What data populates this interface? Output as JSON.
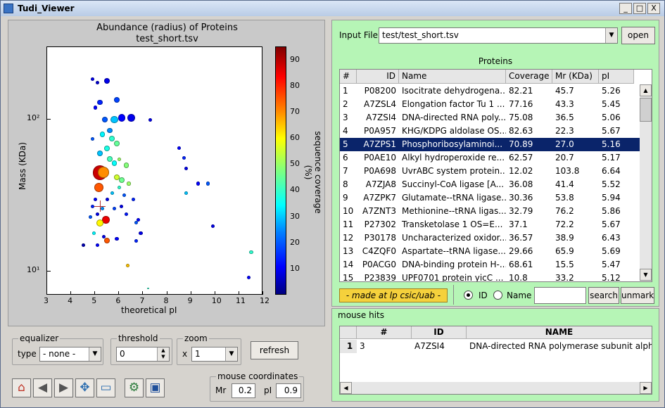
{
  "window": {
    "title": "Tudi_Viewer",
    "min": "_",
    "max": "□",
    "close": "X"
  },
  "chart_data": {
    "type": "scatter",
    "title": "Abundance (radius) of Proteins",
    "subtitle": "test_short.tsv",
    "xlabel": "theoretical pI",
    "ylabel": "Mass (KDa)",
    "xlim": [
      3,
      12
    ],
    "ylim": [
      7,
      300
    ],
    "yscale": "log",
    "xticks": [
      "3",
      "4",
      "5",
      "6",
      "7",
      "8",
      "9",
      "10",
      "11",
      "12"
    ],
    "yticks": [
      {
        "label": "10¹",
        "v": 10
      },
      {
        "label": "10²",
        "v": 100
      }
    ],
    "colorbar": {
      "label": "sequence coverage (%)",
      "range": [
        0,
        95
      ],
      "ticks": [
        "10",
        "20",
        "30",
        "40",
        "50",
        "60",
        "70",
        "80",
        "90"
      ]
    },
    "points": [
      {
        "x": 5.2,
        "y": 45,
        "s": 8,
        "c": 88
      },
      {
        "x": 5.35,
        "y": 45,
        "s": 6,
        "c": 70
      },
      {
        "x": 5.15,
        "y": 36,
        "s": 5,
        "c": 75
      },
      {
        "x": 5.45,
        "y": 22,
        "s": 4,
        "c": 85
      },
      {
        "x": 5.2,
        "y": 21,
        "s": 4,
        "c": 60
      },
      {
        "x": 5.5,
        "y": 16,
        "s": 3,
        "c": 75
      },
      {
        "x": 6.35,
        "y": 11,
        "s": 2,
        "c": 65
      },
      {
        "x": 4.9,
        "y": 185,
        "s": 2,
        "c": 10
      },
      {
        "x": 5.1,
        "y": 175,
        "s": 2,
        "c": 8
      },
      {
        "x": 5.5,
        "y": 180,
        "s": 3,
        "c": 10
      },
      {
        "x": 5.2,
        "y": 130,
        "s": 3,
        "c": 15
      },
      {
        "x": 5.0,
        "y": 120,
        "s": 2,
        "c": 12
      },
      {
        "x": 5.9,
        "y": 135,
        "s": 3,
        "c": 18
      },
      {
        "x": 6.1,
        "y": 103,
        "s": 4,
        "c": 12
      },
      {
        "x": 6.5,
        "y": 103,
        "s": 4,
        "c": 10
      },
      {
        "x": 5.8,
        "y": 100,
        "s": 4,
        "c": 30
      },
      {
        "x": 5.4,
        "y": 100,
        "s": 3,
        "c": 20
      },
      {
        "x": 5.6,
        "y": 85,
        "s": 3,
        "c": 25
      },
      {
        "x": 5.3,
        "y": 80,
        "s": 3,
        "c": 35
      },
      {
        "x": 5.7,
        "y": 75,
        "s": 3,
        "c": 40
      },
      {
        "x": 5.9,
        "y": 70,
        "s": 3,
        "c": 45
      },
      {
        "x": 5.5,
        "y": 65,
        "s": 3,
        "c": 38
      },
      {
        "x": 5.2,
        "y": 60,
        "s": 3,
        "c": 30
      },
      {
        "x": 5.6,
        "y": 55,
        "s": 3,
        "c": 42
      },
      {
        "x": 5.8,
        "y": 52,
        "s": 3,
        "c": 36
      },
      {
        "x": 4.9,
        "y": 75,
        "s": 2,
        "c": 20
      },
      {
        "x": 6.0,
        "y": 55,
        "s": 2,
        "c": 50
      },
      {
        "x": 6.3,
        "y": 50,
        "s": 3,
        "c": 48
      },
      {
        "x": 5.9,
        "y": 42,
        "s": 3,
        "c": 55
      },
      {
        "x": 6.1,
        "y": 40,
        "s": 3,
        "c": 46
      },
      {
        "x": 6.4,
        "y": 38,
        "s": 2,
        "c": 50
      },
      {
        "x": 6.0,
        "y": 36,
        "s": 2,
        "c": 40
      },
      {
        "x": 5.7,
        "y": 33,
        "s": 2,
        "c": 30
      },
      {
        "x": 6.2,
        "y": 32,
        "s": 2,
        "c": 20
      },
      {
        "x": 6.6,
        "y": 30,
        "s": 2,
        "c": 15
      },
      {
        "x": 5.5,
        "y": 30,
        "s": 2,
        "c": 10
      },
      {
        "x": 5.0,
        "y": 30,
        "s": 2,
        "c": 12
      },
      {
        "x": 4.9,
        "y": 27,
        "s": 2,
        "c": 15
      },
      {
        "x": 5.3,
        "y": 26,
        "s": 2,
        "c": 25
      },
      {
        "x": 5.8,
        "y": 26,
        "s": 2,
        "c": 18
      },
      {
        "x": 6.1,
        "y": 27,
        "s": 2,
        "c": 10
      },
      {
        "x": 4.8,
        "y": 23,
        "s": 2,
        "c": 20
      },
      {
        "x": 5.1,
        "y": 24,
        "s": 2,
        "c": 10
      },
      {
        "x": 6.3,
        "y": 24,
        "s": 2,
        "c": 14
      },
      {
        "x": 6.8,
        "y": 22,
        "s": 2,
        "c": 12
      },
      {
        "x": 4.95,
        "y": 18,
        "s": 2,
        "c": 35
      },
      {
        "x": 5.35,
        "y": 17,
        "s": 2,
        "c": 10
      },
      {
        "x": 5.9,
        "y": 16.5,
        "s": 2,
        "c": 12
      },
      {
        "x": 6.7,
        "y": 16,
        "s": 2,
        "c": 15
      },
      {
        "x": 6.9,
        "y": 18,
        "s": 2,
        "c": 10
      },
      {
        "x": 6.7,
        "y": 21,
        "s": 2,
        "c": 20
      },
      {
        "x": 4.5,
        "y": 15,
        "s": 2,
        "c": 5
      },
      {
        "x": 5.1,
        "y": 15,
        "s": 2,
        "c": 12
      },
      {
        "x": 8.5,
        "y": 65,
        "s": 2,
        "c": 12
      },
      {
        "x": 8.7,
        "y": 56,
        "s": 2,
        "c": 15
      },
      {
        "x": 8.8,
        "y": 48,
        "s": 2,
        "c": 10
      },
      {
        "x": 9.3,
        "y": 38,
        "s": 2,
        "c": 12
      },
      {
        "x": 8.8,
        "y": 33,
        "s": 2,
        "c": 30
      },
      {
        "x": 9.7,
        "y": 38,
        "s": 2,
        "c": 20
      },
      {
        "x": 9.9,
        "y": 20,
        "s": 2,
        "c": 10
      },
      {
        "x": 11.5,
        "y": 13.5,
        "s": 2,
        "c": 40
      },
      {
        "x": 11.4,
        "y": 9.2,
        "s": 2,
        "c": 12
      },
      {
        "x": 7.2,
        "y": 7.8,
        "s": 1,
        "c": 40
      },
      {
        "x": 7.3,
        "y": 100,
        "s": 2,
        "c": 10
      }
    ],
    "cursor": {
      "x": 5.2,
      "y": 27
    }
  },
  "controls": {
    "equalizer": {
      "label": "equalizer",
      "type_label": "type",
      "value": "- none -"
    },
    "threshold": {
      "label": "threshold",
      "value": "0"
    },
    "zoom": {
      "label": "zoom",
      "prefix": "x",
      "value": "1"
    },
    "refresh": "refresh",
    "mouse": {
      "label": "mouse coordinates",
      "mr_label": "Mr",
      "mr": "0.2",
      "pi_label": "pI",
      "pi": "0.9"
    }
  },
  "input": {
    "label": "Input File",
    "value": "test/test_short.tsv",
    "open": "open"
  },
  "proteins": {
    "title": "Proteins",
    "columns": [
      "#",
      "ID",
      "Name",
      "Coverage",
      "Mr (KDa)",
      "pI"
    ],
    "rows": [
      [
        "1",
        "P08200",
        "Isocitrate dehydrogena...",
        "82.21",
        "45.7",
        "5.26"
      ],
      [
        "2",
        "A7ZSL4",
        "Elongation factor Tu 1 ...",
        "77.16",
        "43.3",
        "5.45"
      ],
      [
        "3",
        "A7ZSI4",
        "DNA-directed RNA poly...",
        "75.08",
        "36.5",
        "5.06"
      ],
      [
        "4",
        "P0A957",
        "KHG/KDPG aldolase OS...",
        "82.63",
        "22.3",
        "5.67"
      ],
      [
        "5",
        "A7ZPS1",
        "Phosphoribosylaminoi...",
        "70.89",
        "27.0",
        "5.16"
      ],
      [
        "6",
        "P0AE10",
        "Alkyl hydroperoxide re...",
        "62.57",
        "20.7",
        "5.17"
      ],
      [
        "7",
        "P0A698",
        "UvrABC system protein...",
        "12.02",
        "103.8",
        "6.64"
      ],
      [
        "8",
        "A7ZJA8",
        "Succinyl-CoA ligase [A...",
        "36.08",
        "41.4",
        "5.52"
      ],
      [
        "9",
        "A7ZPK7",
        "Glutamate--tRNA ligase...",
        "30.36",
        "53.8",
        "5.94"
      ],
      [
        "10",
        "A7ZNT3",
        "Methionine--tRNA ligas...",
        "32.79",
        "76.2",
        "5.86"
      ],
      [
        "11",
        "P27302",
        "Transketolase 1 OS=E...",
        "37.1",
        "72.2",
        "5.67"
      ],
      [
        "12",
        "P30178",
        "Uncharacterized oxidor...",
        "36.57",
        "38.9",
        "6.43"
      ],
      [
        "13",
        "C4ZQF0",
        "Aspartate--tRNA ligase...",
        "29.66",
        "65.9",
        "5.69"
      ],
      [
        "14",
        "P0ACG0",
        "DNA-binding protein H-...",
        "68.61",
        "15.5",
        "5.47"
      ],
      [
        "15",
        "P23839",
        "UPF0701 protein yicC ...",
        "10.8",
        "33.2",
        "5.12"
      ]
    ],
    "selected_row": 4
  },
  "bottom": {
    "credit": "- made at lp csic/uab -",
    "radio_id": "ID",
    "radio_name": "Name",
    "search": "search",
    "unmark": "unmark"
  },
  "hits": {
    "title": "mouse hits",
    "columns": [
      "#",
      "ID",
      "NAME"
    ],
    "rows": [
      [
        "1",
        "3",
        "A7ZSI4",
        "DNA-directed RNA polymerase subunit alpha"
      ]
    ]
  },
  "toolbar": [
    "home-icon",
    "back-icon",
    "forward-icon",
    "pan-icon",
    "zoom-rect-icon",
    "configure-icon",
    "save-icon"
  ]
}
